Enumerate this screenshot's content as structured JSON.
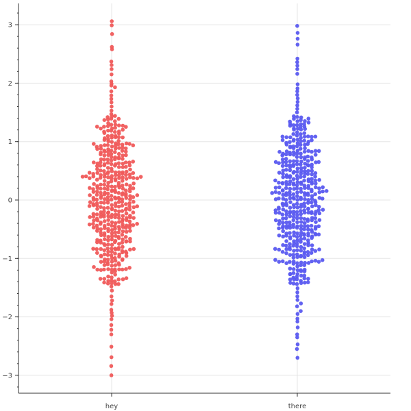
{
  "chart_data": {
    "type": "scatter",
    "title": "",
    "xlabel": "",
    "ylabel": "",
    "categories": [
      "hey",
      "there"
    ],
    "ylim": [
      -3.3,
      3.35
    ],
    "yticks": [
      -3,
      -2,
      -1,
      0,
      1,
      2,
      3
    ],
    "ytick_labels": [
      "−3",
      "−2",
      "−1",
      "0",
      "1",
      "2",
      "3"
    ],
    "grid": true,
    "legend": "none",
    "series": [
      {
        "category": "hey",
        "color": "#f05a5a",
        "y_points": [
          -3.0,
          -2.84,
          -2.69,
          -2.51,
          -2.3,
          -2.22,
          -2.14,
          -2.04,
          -1.98,
          -1.93,
          -1.88,
          -1.78,
          -1.72,
          -1.65,
          -1.55,
          -1.48,
          3.06,
          2.99,
          2.84,
          2.62,
          2.58,
          2.37,
          2.31,
          2.24,
          2.15,
          2.03,
          1.99,
          1.96,
          1.93,
          1.86,
          1.79,
          1.73,
          1.67,
          1.6,
          1.53,
          1.47
        ]
      },
      {
        "category": "there",
        "color": "#5a5af0",
        "y_points": [
          -2.7,
          -2.55,
          -2.47,
          -2.35,
          -2.3,
          -2.18,
          -2.08,
          -2.03,
          -1.95,
          -1.9,
          -1.82,
          -1.77,
          -1.71,
          -1.65,
          -1.58,
          -1.51,
          2.98,
          2.86,
          2.76,
          2.66,
          2.42,
          2.36,
          2.3,
          2.24,
          2.16,
          1.98,
          1.91,
          1.86,
          1.8,
          1.74,
          1.68,
          1.62,
          1.56,
          1.5
        ]
      }
    ],
    "distribution": {
      "n_per_category": 500,
      "mean": 0,
      "sd": 1
    }
  }
}
